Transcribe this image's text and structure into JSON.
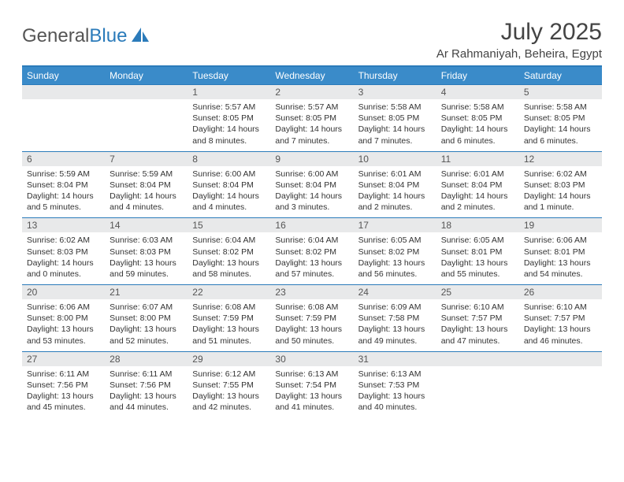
{
  "brand": {
    "part1": "General",
    "part2": "Blue"
  },
  "title": "July 2025",
  "location": "Ar Rahmaniyah, Beheira, Egypt",
  "colors": {
    "header_bg": "#3a8bc9",
    "border": "#2b7bba",
    "daynum_bg": "#e8e9ea",
    "text": "#333333",
    "title_text": "#444444"
  },
  "weekdays": [
    "Sunday",
    "Monday",
    "Tuesday",
    "Wednesday",
    "Thursday",
    "Friday",
    "Saturday"
  ],
  "weeks": [
    [
      {
        "num": "",
        "lines": []
      },
      {
        "num": "",
        "lines": []
      },
      {
        "num": "1",
        "lines": [
          "Sunrise: 5:57 AM",
          "Sunset: 8:05 PM",
          "Daylight: 14 hours and 8 minutes."
        ]
      },
      {
        "num": "2",
        "lines": [
          "Sunrise: 5:57 AM",
          "Sunset: 8:05 PM",
          "Daylight: 14 hours and 7 minutes."
        ]
      },
      {
        "num": "3",
        "lines": [
          "Sunrise: 5:58 AM",
          "Sunset: 8:05 PM",
          "Daylight: 14 hours and 7 minutes."
        ]
      },
      {
        "num": "4",
        "lines": [
          "Sunrise: 5:58 AM",
          "Sunset: 8:05 PM",
          "Daylight: 14 hours and 6 minutes."
        ]
      },
      {
        "num": "5",
        "lines": [
          "Sunrise: 5:58 AM",
          "Sunset: 8:05 PM",
          "Daylight: 14 hours and 6 minutes."
        ]
      }
    ],
    [
      {
        "num": "6",
        "lines": [
          "Sunrise: 5:59 AM",
          "Sunset: 8:04 PM",
          "Daylight: 14 hours and 5 minutes."
        ]
      },
      {
        "num": "7",
        "lines": [
          "Sunrise: 5:59 AM",
          "Sunset: 8:04 PM",
          "Daylight: 14 hours and 4 minutes."
        ]
      },
      {
        "num": "8",
        "lines": [
          "Sunrise: 6:00 AM",
          "Sunset: 8:04 PM",
          "Daylight: 14 hours and 4 minutes."
        ]
      },
      {
        "num": "9",
        "lines": [
          "Sunrise: 6:00 AM",
          "Sunset: 8:04 PM",
          "Daylight: 14 hours and 3 minutes."
        ]
      },
      {
        "num": "10",
        "lines": [
          "Sunrise: 6:01 AM",
          "Sunset: 8:04 PM",
          "Daylight: 14 hours and 2 minutes."
        ]
      },
      {
        "num": "11",
        "lines": [
          "Sunrise: 6:01 AM",
          "Sunset: 8:04 PM",
          "Daylight: 14 hours and 2 minutes."
        ]
      },
      {
        "num": "12",
        "lines": [
          "Sunrise: 6:02 AM",
          "Sunset: 8:03 PM",
          "Daylight: 14 hours and 1 minute."
        ]
      }
    ],
    [
      {
        "num": "13",
        "lines": [
          "Sunrise: 6:02 AM",
          "Sunset: 8:03 PM",
          "Daylight: 14 hours and 0 minutes."
        ]
      },
      {
        "num": "14",
        "lines": [
          "Sunrise: 6:03 AM",
          "Sunset: 8:03 PM",
          "Daylight: 13 hours and 59 minutes."
        ]
      },
      {
        "num": "15",
        "lines": [
          "Sunrise: 6:04 AM",
          "Sunset: 8:02 PM",
          "Daylight: 13 hours and 58 minutes."
        ]
      },
      {
        "num": "16",
        "lines": [
          "Sunrise: 6:04 AM",
          "Sunset: 8:02 PM",
          "Daylight: 13 hours and 57 minutes."
        ]
      },
      {
        "num": "17",
        "lines": [
          "Sunrise: 6:05 AM",
          "Sunset: 8:02 PM",
          "Daylight: 13 hours and 56 minutes."
        ]
      },
      {
        "num": "18",
        "lines": [
          "Sunrise: 6:05 AM",
          "Sunset: 8:01 PM",
          "Daylight: 13 hours and 55 minutes."
        ]
      },
      {
        "num": "19",
        "lines": [
          "Sunrise: 6:06 AM",
          "Sunset: 8:01 PM",
          "Daylight: 13 hours and 54 minutes."
        ]
      }
    ],
    [
      {
        "num": "20",
        "lines": [
          "Sunrise: 6:06 AM",
          "Sunset: 8:00 PM",
          "Daylight: 13 hours and 53 minutes."
        ]
      },
      {
        "num": "21",
        "lines": [
          "Sunrise: 6:07 AM",
          "Sunset: 8:00 PM",
          "Daylight: 13 hours and 52 minutes."
        ]
      },
      {
        "num": "22",
        "lines": [
          "Sunrise: 6:08 AM",
          "Sunset: 7:59 PM",
          "Daylight: 13 hours and 51 minutes."
        ]
      },
      {
        "num": "23",
        "lines": [
          "Sunrise: 6:08 AM",
          "Sunset: 7:59 PM",
          "Daylight: 13 hours and 50 minutes."
        ]
      },
      {
        "num": "24",
        "lines": [
          "Sunrise: 6:09 AM",
          "Sunset: 7:58 PM",
          "Daylight: 13 hours and 49 minutes."
        ]
      },
      {
        "num": "25",
        "lines": [
          "Sunrise: 6:10 AM",
          "Sunset: 7:57 PM",
          "Daylight: 13 hours and 47 minutes."
        ]
      },
      {
        "num": "26",
        "lines": [
          "Sunrise: 6:10 AM",
          "Sunset: 7:57 PM",
          "Daylight: 13 hours and 46 minutes."
        ]
      }
    ],
    [
      {
        "num": "27",
        "lines": [
          "Sunrise: 6:11 AM",
          "Sunset: 7:56 PM",
          "Daylight: 13 hours and 45 minutes."
        ]
      },
      {
        "num": "28",
        "lines": [
          "Sunrise: 6:11 AM",
          "Sunset: 7:56 PM",
          "Daylight: 13 hours and 44 minutes."
        ]
      },
      {
        "num": "29",
        "lines": [
          "Sunrise: 6:12 AM",
          "Sunset: 7:55 PM",
          "Daylight: 13 hours and 42 minutes."
        ]
      },
      {
        "num": "30",
        "lines": [
          "Sunrise: 6:13 AM",
          "Sunset: 7:54 PM",
          "Daylight: 13 hours and 41 minutes."
        ]
      },
      {
        "num": "31",
        "lines": [
          "Sunrise: 6:13 AM",
          "Sunset: 7:53 PM",
          "Daylight: 13 hours and 40 minutes."
        ]
      },
      {
        "num": "",
        "lines": []
      },
      {
        "num": "",
        "lines": []
      }
    ]
  ]
}
